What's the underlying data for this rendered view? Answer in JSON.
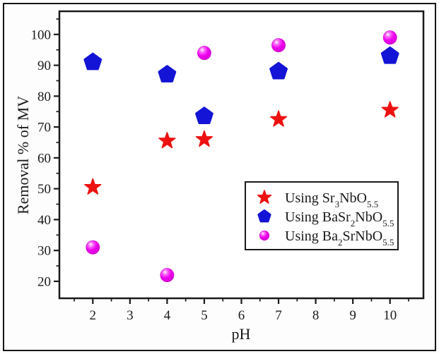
{
  "figure": {
    "background": "#fdfdfd",
    "frame_color": "#161616"
  },
  "chart_data": {
    "type": "scatter",
    "title": "",
    "xlabel": "pH",
    "ylabel": "Removal % of MV",
    "xlim": [
      1.1,
      10.9
    ],
    "ylim": [
      14.5,
      107.5
    ],
    "xticks": [
      2,
      3,
      4,
      5,
      6,
      7,
      8,
      9,
      10
    ],
    "yticks": [
      20,
      30,
      40,
      50,
      60,
      70,
      80,
      90,
      100
    ],
    "x_minor_step": 0.5,
    "y_minor_step": 5,
    "grid": false,
    "legend_position": "inside lower-right",
    "axis_color": "#1a1a1a",
    "x": [
      2,
      4,
      5,
      7,
      10
    ],
    "series": [
      {
        "name": "Using Sr3NbO5.5",
        "marker": "star",
        "color": "#ee1111",
        "values": [
          50.5,
          65.5,
          66,
          72.5,
          75.5
        ]
      },
      {
        "name": "Using BaSr2NbO5.5",
        "marker": "pentagon",
        "color": "#1414d6",
        "values": [
          91,
          87,
          73.5,
          88,
          93
        ]
      },
      {
        "name": "Using Ba2SrNbO5.5",
        "marker": "sphere",
        "color": "#ee00ee",
        "values": [
          31,
          22,
          94,
          96.5,
          99
        ]
      }
    ],
    "legend": [
      {
        "marker": "star",
        "color": "#ee1111",
        "parts": [
          {
            "t": "Using Sr"
          },
          {
            "s": "3"
          },
          {
            "t": "NbO"
          },
          {
            "s": "5.5"
          }
        ]
      },
      {
        "marker": "pentagon",
        "color": "#1414d6",
        "parts": [
          {
            "t": "Using BaSr"
          },
          {
            "s": "2"
          },
          {
            "t": "NbO"
          },
          {
            "s": "5.5"
          }
        ]
      },
      {
        "marker": "sphere",
        "color": "#ee00ee",
        "parts": [
          {
            "t": "Using Ba"
          },
          {
            "s": "2"
          },
          {
            "t": "SrNbO"
          },
          {
            "s": "5.5"
          }
        ]
      }
    ]
  }
}
